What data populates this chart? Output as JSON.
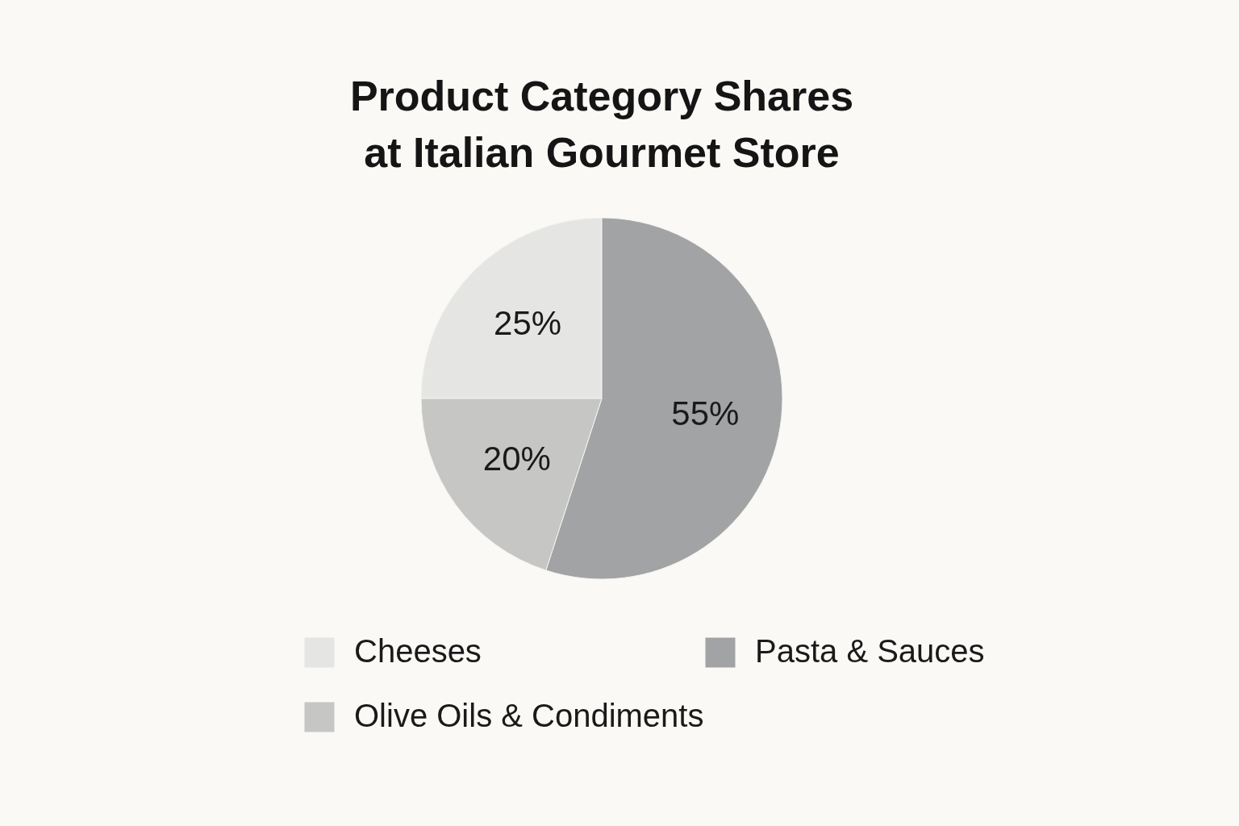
{
  "chart_data": {
    "type": "pie",
    "title": "Product Category Shares at Italian Gourmet Store",
    "categories": [
      "Cheeses",
      "Pasta & Sauces",
      "Olive Oils & Condiments"
    ],
    "values": [
      25,
      55,
      20
    ],
    "colors": [
      "#e5e5e3",
      "#a2a3a4",
      "#c6c6c5"
    ],
    "value_labels": [
      "25%",
      "55%",
      "20%"
    ],
    "legend": "bottom"
  }
}
